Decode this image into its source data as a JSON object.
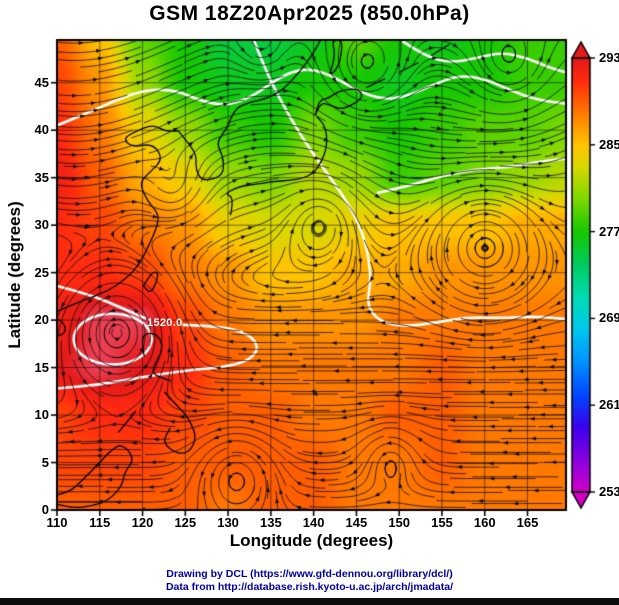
{
  "title": "GSM 18Z20Apr2025 (850.0hPa)",
  "axes": {
    "x": {
      "label": "Longitude (degrees)",
      "range": [
        110,
        169.5
      ],
      "ticks": [
        110,
        115,
        120,
        125,
        130,
        135,
        140,
        145,
        150,
        155,
        160,
        165
      ]
    },
    "y": {
      "label": "Latitude  (degrees)",
      "range": [
        0,
        49.5
      ],
      "ticks": [
        0,
        5,
        10,
        15,
        20,
        25,
        30,
        35,
        40,
        45
      ]
    }
  },
  "colorbar": {
    "range": [
      253,
      293
    ],
    "ticks": [
      293,
      285,
      277,
      269,
      261,
      253
    ],
    "stops": [
      [
        253,
        "#d400c8"
      ],
      [
        256,
        "#8a00e0"
      ],
      [
        259,
        "#3c00ee"
      ],
      [
        262,
        "#0048ff"
      ],
      [
        265,
        "#0092ff"
      ],
      [
        268,
        "#00c8ee"
      ],
      [
        271,
        "#00ddb4"
      ],
      [
        274,
        "#00cc62"
      ],
      [
        277,
        "#16c800"
      ],
      [
        280,
        "#7cd800"
      ],
      [
        283,
        "#d8d800"
      ],
      [
        285,
        "#ffc400"
      ],
      [
        287,
        "#ff9400"
      ],
      [
        289,
        "#ff5e00"
      ],
      [
        291,
        "#ff2a10"
      ],
      [
        293,
        "#e31a1a"
      ],
      [
        295,
        "#f4648c"
      ]
    ]
  },
  "overlays": {
    "contour_label": "1520.0",
    "streamlines": "wind streamlines with arrows",
    "white_contours": "geopotential height contours"
  },
  "footer": {
    "line1": "Drawing by DCL (https://www.gfd-dennou.org/library/dcl/)",
    "line2": "Data from http://database.rish.kyoto-u.ac.jp/arch/jmadata/"
  },
  "chart_data": {
    "type": "heatmap",
    "title": "GSM 18Z20Apr2025 (850.0hPa)",
    "xlabel": "Longitude (degrees)",
    "ylabel": "Latitude (degrees)",
    "x": [
      110,
      115,
      120,
      125,
      130,
      135,
      140,
      145,
      150,
      155,
      160,
      165,
      170
    ],
    "y": [
      0,
      5,
      10,
      15,
      20,
      25,
      30,
      35,
      40,
      45,
      50
    ],
    "values": [
      [
        289,
        289,
        289,
        289,
        288,
        289,
        289,
        288,
        288,
        288,
        288,
        288,
        288
      ],
      [
        290,
        290,
        290,
        289,
        289,
        289,
        289,
        288,
        288,
        289,
        288,
        288,
        288
      ],
      [
        290,
        291,
        291,
        290,
        289,
        289,
        288,
        288,
        289,
        289,
        288,
        288,
        288
      ],
      [
        293,
        294,
        293,
        291,
        289,
        288,
        288,
        288,
        288,
        289,
        288,
        288,
        288
      ],
      [
        292,
        294,
        294,
        290,
        288,
        287,
        287,
        287,
        288,
        288,
        288,
        288,
        288
      ],
      [
        291,
        291,
        290,
        288,
        287,
        285,
        285,
        286,
        286,
        287,
        287,
        287,
        287
      ],
      [
        291,
        290,
        288,
        287,
        284,
        283,
        283,
        284,
        285,
        285,
        285,
        286,
        286
      ],
      [
        292,
        289,
        286,
        284,
        281,
        280,
        282,
        281,
        278,
        279,
        280,
        281,
        282
      ],
      [
        291,
        288,
        284,
        281,
        278,
        277,
        280,
        278,
        277,
        278,
        279,
        279,
        280
      ],
      [
        290,
        287,
        281,
        277,
        276,
        276,
        277,
        277,
        276,
        277,
        277,
        278,
        278
      ],
      [
        289,
        285,
        279,
        277,
        275,
        275,
        276,
        279,
        277,
        276,
        277,
        278,
        278
      ]
    ],
    "value_range": [
      253,
      293
    ],
    "colorbar_ticks": [
      253,
      261,
      269,
      277,
      285,
      293
    ],
    "legend_position": "right",
    "grid": true,
    "annotations": [
      {
        "text": "1520.0",
        "lon": 122.6,
        "lat": 19.7
      }
    ]
  }
}
